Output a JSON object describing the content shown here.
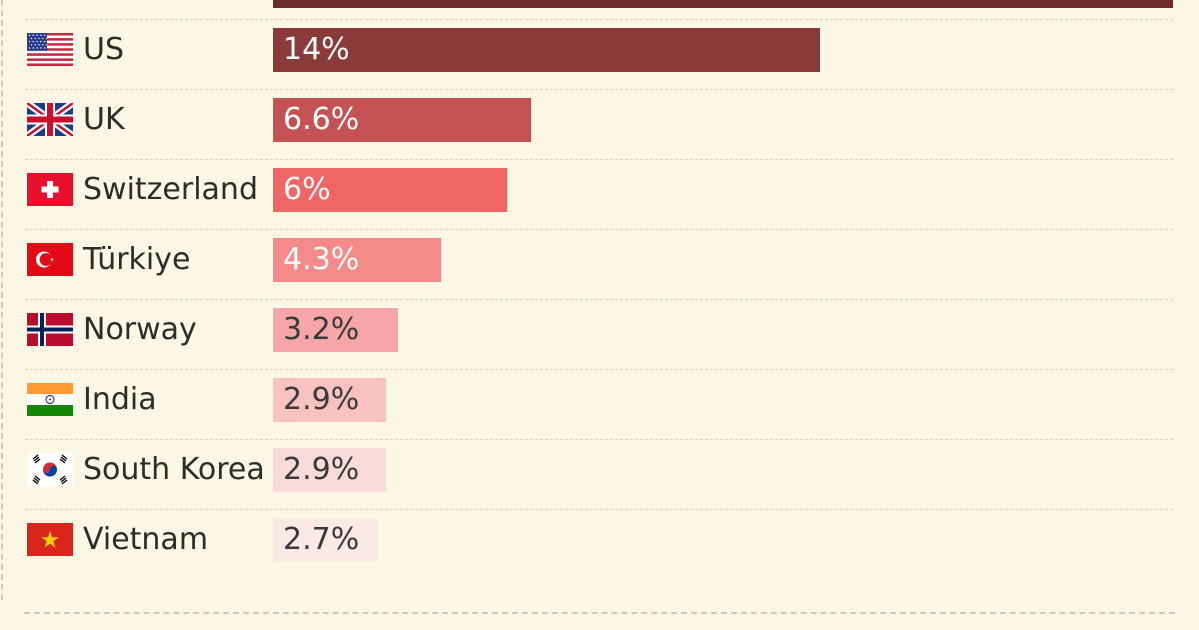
{
  "chart_data": {
    "type": "bar",
    "orientation": "horizontal",
    "categories": [
      "US",
      "UK",
      "Switzerland",
      "Türkiye",
      "Norway",
      "India",
      "South Korea",
      "Vietnam"
    ],
    "values": [
      14,
      6.6,
      6,
      4.3,
      3.2,
      2.9,
      2.9,
      2.7
    ],
    "value_labels": [
      "14%",
      "6.6%",
      "6%",
      "4.3%",
      "3.2%",
      "2.9%",
      "2.9%",
      "2.7%"
    ],
    "bar_colors": [
      "#8b3a3a",
      "#c45252",
      "#f06666",
      "#f48b88",
      "#f6a6a6",
      "#f8c2c0",
      "#f9dcda",
      "#fbe9e6"
    ],
    "label_colors": [
      "#ffffff",
      "#ffffff",
      "#ffffff",
      "#ffffff",
      "#3a3a3a",
      "#3a3a3a",
      "#3a3a3a",
      "#3a3a3a"
    ],
    "flags": [
      "us-flag-icon",
      "uk-flag-icon",
      "switzerland-flag-icon",
      "turkiye-flag-icon",
      "norway-flag-icon",
      "india-flag-icon",
      "south-korea-flag-icon",
      "vietnam-flag-icon"
    ],
    "top_partial_bar_color": "#6d2a2a",
    "grid": false,
    "legend": "none"
  }
}
